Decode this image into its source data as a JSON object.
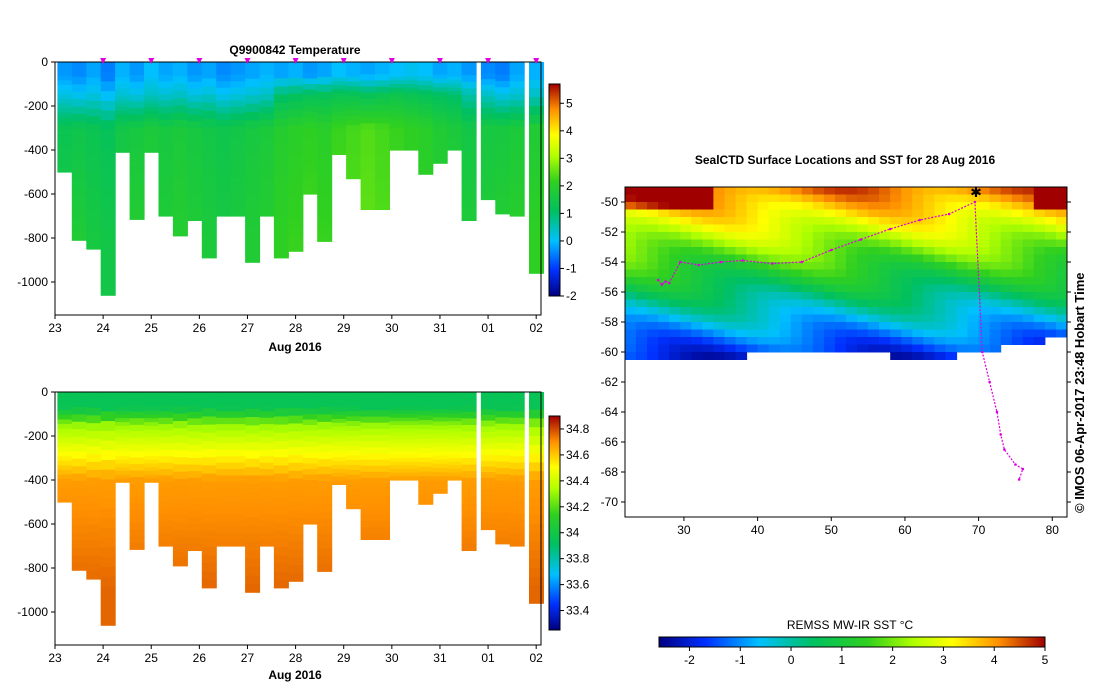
{
  "chart_data": [
    {
      "type": "heatmap",
      "title": "Q9900842  Temperature",
      "xlabel": "Aug 2016",
      "ylabel": "",
      "x_ticks": [
        "23",
        "24",
        "25",
        "26",
        "27",
        "28",
        "29",
        "30",
        "31",
        "01",
        "02"
      ],
      "y_ticks": [
        "0",
        "-200",
        "-400",
        "-600",
        "-800",
        "-1000"
      ],
      "xlim": [
        23,
        33.1
      ],
      "ylim": [
        -1150,
        0
      ],
      "colorbar": {
        "ticks": [
          "5",
          "4",
          "3",
          "2",
          "1",
          "0",
          "-1",
          "-2"
        ],
        "range": [
          -2,
          5.7
        ]
      },
      "surface_markers_x": [
        24,
        25,
        26,
        27,
        28,
        29,
        30,
        31,
        32,
        33
      ],
      "profiles": [
        {
          "x": 23.2,
          "depth": -500,
          "values": [
            -0.3,
            0.2,
            1.3,
            1.7
          ]
        },
        {
          "x": 23.5,
          "depth": -810,
          "values": [
            -0.4,
            0.1,
            1.4,
            1.8
          ]
        },
        {
          "x": 23.8,
          "depth": -850,
          "values": [
            -0.2,
            0.2,
            1.3,
            1.6
          ]
        },
        {
          "x": 24.1,
          "depth": -1060,
          "values": [
            -0.5,
            0.0,
            1.2,
            1.5
          ]
        },
        {
          "x": 24.4,
          "depth": -410,
          "values": [
            -0.1,
            0.3,
            1.5,
            1.8
          ]
        },
        {
          "x": 24.7,
          "depth": -715,
          "values": [
            -0.3,
            0.2,
            1.6,
            1.9
          ]
        },
        {
          "x": 25.0,
          "depth": -410,
          "values": [
            0.0,
            0.4,
            1.7,
            1.9
          ]
        },
        {
          "x": 25.3,
          "depth": -700,
          "values": [
            -0.2,
            0.3,
            1.6,
            1.8
          ]
        },
        {
          "x": 25.6,
          "depth": -790,
          "values": [
            -0.1,
            0.4,
            1.7,
            1.9
          ]
        },
        {
          "x": 25.9,
          "depth": -720,
          "values": [
            -0.3,
            0.2,
            1.6,
            1.8
          ]
        },
        {
          "x": 26.2,
          "depth": -890,
          "values": [
            -0.2,
            0.3,
            1.5,
            1.7
          ]
        },
        {
          "x": 26.5,
          "depth": -700,
          "values": [
            -0.4,
            0.1,
            1.4,
            1.6
          ]
        },
        {
          "x": 26.8,
          "depth": -700,
          "values": [
            -0.3,
            0.2,
            1.5,
            1.7
          ]
        },
        {
          "x": 27.1,
          "depth": -910,
          "values": [
            -0.2,
            0.3,
            1.6,
            1.8
          ]
        },
        {
          "x": 27.4,
          "depth": -700,
          "values": [
            -0.1,
            0.4,
            1.7,
            1.9
          ]
        },
        {
          "x": 27.7,
          "depth": -890,
          "values": [
            -0.2,
            1.0,
            1.9,
            2.1
          ]
        },
        {
          "x": 28.0,
          "depth": -860,
          "values": [
            -0.1,
            1.1,
            2.0,
            2.2
          ]
        },
        {
          "x": 28.3,
          "depth": -600,
          "values": [
            -0.3,
            1.2,
            2.1,
            2.3
          ]
        },
        {
          "x": 28.6,
          "depth": -815,
          "values": [
            -0.2,
            1.2,
            2.0,
            2.2
          ]
        },
        {
          "x": 28.9,
          "depth": -420,
          "values": [
            0.0,
            1.3,
            2.2,
            2.4
          ]
        },
        {
          "x": 29.2,
          "depth": -530,
          "values": [
            -0.1,
            1.3,
            2.3,
            2.4
          ]
        },
        {
          "x": 29.5,
          "depth": -670,
          "values": [
            -0.2,
            1.2,
            2.4,
            2.5
          ]
        },
        {
          "x": 29.8,
          "depth": -670,
          "values": [
            -0.1,
            1.3,
            2.3,
            2.4
          ]
        },
        {
          "x": 30.1,
          "depth": -400,
          "values": [
            0.0,
            1.4,
            2.2,
            2.3
          ]
        },
        {
          "x": 30.4,
          "depth": -400,
          "values": [
            0.1,
            1.3,
            2.1,
            2.2
          ]
        },
        {
          "x": 30.7,
          "depth": -510,
          "values": [
            0.0,
            1.2,
            2.0,
            2.1
          ]
        },
        {
          "x": 31.0,
          "depth": -460,
          "values": [
            -0.2,
            1.1,
            1.8,
            2.0
          ]
        },
        {
          "x": 31.3,
          "depth": -400,
          "values": [
            -0.1,
            1.0,
            1.7,
            1.9
          ]
        },
        {
          "x": 31.6,
          "depth": -720,
          "values": [
            -0.3,
            0.6,
            1.5,
            1.8
          ]
        },
        {
          "x": 32.0,
          "depth": -625,
          "values": [
            -0.4,
            0.4,
            1.6,
            1.8
          ]
        },
        {
          "x": 32.3,
          "depth": -690,
          "values": [
            -0.5,
            0.2,
            1.6,
            1.9
          ]
        },
        {
          "x": 32.6,
          "depth": -700,
          "values": [
            -0.2,
            0.3,
            1.7,
            2.0
          ]
        },
        {
          "x": 33.0,
          "depth": -960,
          "values": [
            -0.1,
            0.4,
            1.8,
            2.1
          ]
        }
      ]
    },
    {
      "type": "heatmap",
      "title": "",
      "xlabel": "Aug 2016",
      "ylabel": "",
      "x_ticks": [
        "23",
        "24",
        "25",
        "26",
        "27",
        "28",
        "29",
        "30",
        "31",
        "01",
        "02"
      ],
      "y_ticks": [
        "0",
        "-200",
        "-400",
        "-600",
        "-800",
        "-1000"
      ],
      "xlim": [
        23,
        33.1
      ],
      "ylim": [
        -1150,
        0
      ],
      "colorbar": {
        "ticks": [
          "34.8",
          "34.6",
          "34.4",
          "34.2",
          "34",
          "33.8",
          "33.6",
          "33.4"
        ],
        "range": [
          33.25,
          34.9
        ]
      },
      "profiles_same_as_first": true
    },
    {
      "type": "heatmap",
      "title": "SealCTD Surface Locations and SST for 28 Aug 2016",
      "xlabel": "",
      "ylabel": "",
      "x_ticks": [
        "30",
        "40",
        "50",
        "60",
        "70",
        "80"
      ],
      "y_ticks": [
        "-50",
        "-52",
        "-54",
        "-56",
        "-58",
        "-60",
        "-62",
        "-64",
        "-66",
        "-68",
        "-70"
      ],
      "xlim": [
        22,
        82
      ],
      "ylim": [
        -71,
        -49
      ],
      "colorbar": {
        "label": "REMSS MW-IR SST °C",
        "ticks": [
          "-2",
          "-1",
          "0",
          "1",
          "2",
          "3",
          "4",
          "5"
        ],
        "range": [
          -2.6,
          5
        ]
      },
      "credit": "© IMOS 06-Apr-2017 23:48 Hobart Time",
      "seal_track": [
        [
          26.5,
          -55.2
        ],
        [
          27.0,
          -55.5
        ],
        [
          27.5,
          -55.3
        ],
        [
          28.0,
          -55.4
        ],
        [
          29.5,
          -54.0
        ],
        [
          32.0,
          -54.2
        ],
        [
          35.0,
          -54.0
        ],
        [
          38.0,
          -53.9
        ],
        [
          42.0,
          -54.1
        ],
        [
          46.0,
          -54.0
        ],
        [
          50.0,
          -53.2
        ],
        [
          54.0,
          -52.5
        ],
        [
          58.0,
          -51.8
        ],
        [
          62.0,
          -51.2
        ],
        [
          66.0,
          -50.8
        ],
        [
          69.5,
          -50.0
        ],
        [
          70.5,
          -60.0
        ],
        [
          71.5,
          -62.0
        ],
        [
          72.5,
          -64.0
        ],
        [
          73.0,
          -65.5
        ],
        [
          73.5,
          -66.5
        ],
        [
          75.0,
          -67.5
        ],
        [
          76.0,
          -67.8
        ],
        [
          75.5,
          -68.5
        ]
      ]
    }
  ]
}
